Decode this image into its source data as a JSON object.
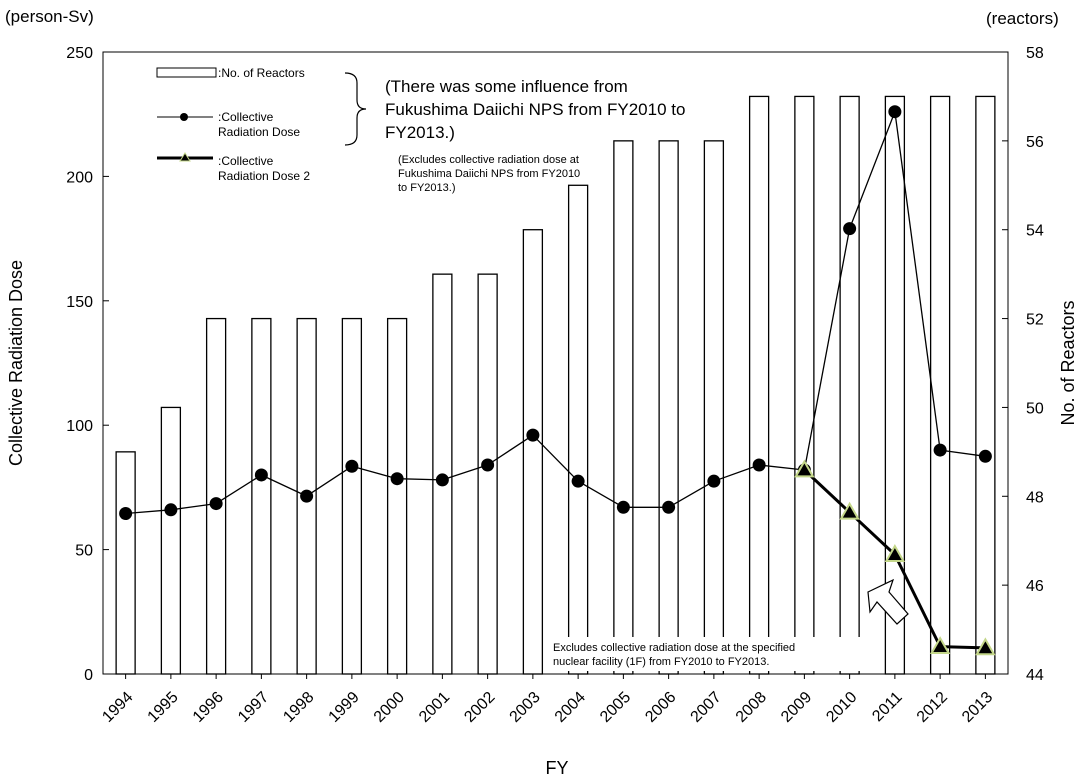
{
  "chart_data": {
    "type": "bar",
    "categories": [
      "1994",
      "1995",
      "1996",
      "1997",
      "1998",
      "1999",
      "2000",
      "2001",
      "2002",
      "2003",
      "2004",
      "2005",
      "2006",
      "2007",
      "2008",
      "2009",
      "2010",
      "2011",
      "2012",
      "2013"
    ],
    "xlabel": "FY",
    "y_left": {
      "label": "Collective Radiation Dose",
      "unit": "(person-Sv)",
      "range": [
        0,
        250
      ],
      "ticks": [
        0,
        50,
        100,
        150,
        200,
        250
      ]
    },
    "y_right": {
      "label": "No. of Reactors",
      "unit": "(reactors)",
      "range": [
        44,
        58
      ],
      "ticks": [
        44,
        46,
        48,
        50,
        52,
        54,
        56,
        58
      ]
    },
    "grid": false,
    "legend_position": "top-left",
    "series": [
      {
        "name": ":No. of Reactors",
        "type": "bar",
        "axis": "right",
        "values": [
          49,
          50,
          52,
          52,
          52,
          52,
          52,
          53,
          53,
          54,
          55,
          56,
          56,
          56,
          57,
          57,
          57,
          57,
          57,
          57
        ]
      },
      {
        "name": ":Collective Radiation Dose",
        "type": "line",
        "axis": "left",
        "marker": "circle",
        "values": [
          64.5,
          66,
          68.5,
          80,
          71.5,
          83.5,
          78.5,
          78,
          84,
          96,
          77.5,
          67,
          67,
          77.5,
          84,
          82,
          179,
          226,
          90,
          87.5
        ]
      },
      {
        "name": ":Collective Radiation Dose 2",
        "type": "line",
        "axis": "left",
        "marker": "triangle",
        "values": [
          null,
          null,
          null,
          null,
          null,
          null,
          null,
          null,
          null,
          null,
          null,
          null,
          null,
          null,
          null,
          82,
          65,
          48,
          11,
          10.5
        ]
      }
    ],
    "legend_labels": [
      [
        ":No. of Reactors"
      ],
      [
        ":Collective",
        "Radiation Dose"
      ],
      [
        ":Collective",
        "Radiation Dose 2"
      ]
    ],
    "annotations": {
      "influence": [
        "(There was some influence from",
        "Fukushima Daiichi NPS from FY2010 to",
        "FY2013.)"
      ],
      "excludes_small": [
        "(Excludes collective radiation dose at",
        "Fukushima Daiichi NPS from  FY2010",
        "to  FY2013.)"
      ],
      "excludes_1f": [
        "Excludes  collective  radiation  dose  at  the  specified",
        "nuclear facility (1F) from FY2010 to FY2013."
      ]
    },
    "colors": {
      "bar_fill": "#ffffff",
      "bar_stroke": "#000000",
      "line": "#000000",
      "marker": "#000000",
      "triangle_fill": "#000000",
      "triangle_stroke": "#c4d78a"
    }
  }
}
